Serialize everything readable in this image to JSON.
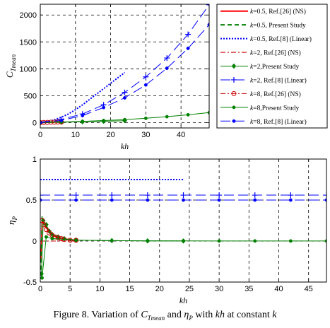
{
  "chart_data": [
    {
      "type": "line",
      "title": "",
      "xlabel": "kh",
      "ylabel": "C_Tmean",
      "xlim": [
        0,
        48
      ],
      "ylim": [
        -100,
        2200
      ],
      "xticks": [
        "0",
        "10",
        "20",
        "30",
        "40"
      ],
      "yticks": [
        "0",
        "500",
        "1000",
        "1500",
        "2000"
      ],
      "grid": true,
      "legend_placement": "outside-right",
      "series": [
        {
          "name": "k=0.5, Ref.[26] (NS)",
          "color": "#ff0000",
          "dash": "solid",
          "marker": "none",
          "width": 2,
          "x": [
            0.5,
            1,
            2,
            3,
            4,
            5
          ],
          "y": [
            2,
            4,
            6,
            8,
            10,
            12
          ]
        },
        {
          "name": "k=0.5, Present Study",
          "color": "#008000",
          "dash": "dashed",
          "marker": "none",
          "width": 2,
          "x": [
            0.5,
            1,
            2,
            3,
            4,
            5,
            6
          ],
          "y": [
            2,
            4,
            6,
            8,
            10,
            12,
            14
          ]
        },
        {
          "name": "k=0.5, Ref.[8] (Linear)",
          "color": "#0000ff",
          "dash": "dotted",
          "marker": "none",
          "width": 2,
          "x": [
            0,
            2,
            4,
            6,
            8,
            10,
            12,
            14,
            16,
            18,
            20,
            22,
            24
          ],
          "y": [
            5,
            20,
            50,
            100,
            160,
            240,
            330,
            430,
            530,
            630,
            730,
            830,
            930
          ]
        },
        {
          "name": "k=2, Ref.[26] (NS)",
          "color": "#cc0000",
          "dash": "dashdot",
          "marker": "none",
          "width": 1.2,
          "x": [
            0,
            1,
            2,
            3,
            4,
            5,
            6
          ],
          "y": [
            0,
            2,
            4,
            6,
            8,
            10,
            12
          ]
        },
        {
          "name": "k=2,Present Study",
          "color": "#008000",
          "dash": "solid",
          "marker": "diamond",
          "width": 1,
          "x": [
            0,
            6,
            12,
            18,
            24
          ],
          "y": [
            0,
            6,
            14,
            24,
            36
          ]
        },
        {
          "name": "k=2, Ref.[8] (Linear)",
          "color": "#0000ff",
          "dash": "longdash",
          "marker": "plus",
          "width": 1,
          "x": [
            0,
            6,
            12,
            18,
            24,
            30,
            36,
            42,
            48
          ],
          "y": [
            0,
            60,
            160,
            330,
            560,
            850,
            1200,
            1640,
            2190
          ]
        },
        {
          "name": "k=8, Ref.[26] (NS)",
          "color": "#cc0000",
          "dash": "dashdot",
          "marker": "circle",
          "width": 1,
          "x": [
            0,
            1,
            2,
            3,
            4,
            5,
            6
          ],
          "y": [
            0,
            2,
            4,
            6,
            8,
            10,
            12
          ]
        },
        {
          "name": "k=8,Present Study",
          "color": "#008000",
          "dash": "solid",
          "marker": "dot",
          "width": 1,
          "x": [
            0,
            6,
            12,
            18,
            24,
            30,
            36,
            42,
            48
          ],
          "y": [
            0,
            10,
            22,
            38,
            55,
            80,
            110,
            145,
            185
          ]
        },
        {
          "name": "k=8, Ref.[8] (Linear)",
          "color": "#0000ff",
          "dash": "longdash",
          "marker": "dot",
          "width": 1,
          "x": [
            0,
            6,
            12,
            18,
            24,
            30,
            36,
            42,
            48
          ],
          "y": [
            0,
            40,
            130,
            280,
            460,
            700,
            1010,
            1380,
            1820
          ]
        }
      ]
    },
    {
      "type": "line",
      "title": "",
      "xlabel": "kh",
      "ylabel": "η_P",
      "xlim": [
        0,
        48
      ],
      "ylim": [
        -0.5,
        1
      ],
      "xticks": [
        "0",
        "5",
        "10",
        "15",
        "20",
        "25",
        "30",
        "35",
        "40",
        "45"
      ],
      "yticks": [
        "-0.5",
        "0",
        "0.5",
        "1"
      ],
      "grid": true,
      "series": [
        {
          "name": "k=0.5, Ref.[26] (NS)",
          "color": "#ff0000",
          "dash": "solid",
          "marker": "none",
          "width": 1.5,
          "x": [
            0.1,
            0.3,
            0.6,
            1,
            1.5,
            2,
            3,
            4,
            5,
            6
          ],
          "y": [
            -0.25,
            0.27,
            0.21,
            0.16,
            0.11,
            0.07,
            0.04,
            0.02,
            0.01,
            0.01
          ]
        },
        {
          "name": "k=0.5, Present Study",
          "color": "#008000",
          "dash": "dashed",
          "marker": "none",
          "width": 1.5,
          "x": [
            0.1,
            0.3,
            0.6,
            1,
            1.5,
            2,
            3,
            4,
            5,
            6
          ],
          "y": [
            -0.35,
            0.3,
            0.23,
            0.18,
            0.12,
            0.08,
            0.05,
            0.03,
            0.02,
            0.01
          ]
        },
        {
          "name": "k=0.5, Ref.[8] (Linear)",
          "color": "#0000ff",
          "dash": "dotted",
          "marker": "none",
          "width": 2,
          "x": [
            0,
            24
          ],
          "y": [
            0.75,
            0.75
          ]
        },
        {
          "name": "k=2, Ref.[26] (NS)",
          "color": "#cc0000",
          "dash": "dashdot",
          "marker": "none",
          "width": 1,
          "x": [
            0,
            6
          ],
          "y": [
            0,
            0
          ]
        },
        {
          "name": "k=2,Present Study",
          "color": "#008000",
          "dash": "solid",
          "marker": "diamond",
          "width": 1,
          "x": [
            0.2,
            0.5,
            1,
            1.5,
            2,
            3,
            4,
            6,
            12,
            18,
            24
          ],
          "y": [
            -0.4,
            0.25,
            0.2,
            0.12,
            0.08,
            0.05,
            0.03,
            0.01,
            0.005,
            0.002,
            0.001
          ]
        },
        {
          "name": "k=2, Ref.[8] (Linear)",
          "color": "#0000ff",
          "dash": "longdash",
          "marker": "plus",
          "width": 1,
          "x": [
            0,
            6,
            12,
            18,
            24,
            30,
            36,
            42,
            48
          ],
          "y": [
            0.56,
            0.56,
            0.56,
            0.56,
            0.56,
            0.56,
            0.56,
            0.56,
            0.56
          ]
        },
        {
          "name": "k=8, Ref.[26] (NS)",
          "color": "#cc0000",
          "dash": "dashdot",
          "marker": "circle",
          "width": 1,
          "x": [
            0.3,
            0.6,
            1,
            1.5,
            2,
            2.5,
            3,
            3.5,
            4,
            5,
            6
          ],
          "y": [
            0.25,
            0.2,
            0.14,
            0.1,
            0.07,
            0.05,
            0.04,
            0.03,
            0.02,
            0.01,
            0.01
          ]
        },
        {
          "name": "k=8,Present Study",
          "color": "#008000",
          "dash": "solid",
          "marker": "dot",
          "width": 1,
          "x": [
            0.3,
            1,
            2,
            6,
            12,
            18,
            24,
            30,
            36,
            42,
            48
          ],
          "y": [
            -0.45,
            0.05,
            0.03,
            0.01,
            0.005,
            0.003,
            0.002,
            0.001,
            0.001,
            0.001,
            0.001
          ]
        },
        {
          "name": "k=8, Ref.[8] (Linear)",
          "color": "#0000ff",
          "dash": "longdash",
          "marker": "dot",
          "width": 1,
          "x": [
            0,
            6,
            12,
            18,
            24,
            30,
            36,
            42,
            48
          ],
          "y": [
            0.5,
            0.5,
            0.5,
            0.5,
            0.5,
            0.5,
            0.5,
            0.5,
            0.5
          ]
        }
      ]
    }
  ],
  "caption": {
    "prefix": "Figure 8. Variation of ",
    "c_main": "C",
    "c_sub": "Tmean",
    "and": " and ",
    "eta_main": "η",
    "eta_sub": "P",
    "middle": " with ",
    "kh": "kh",
    "at": " at constant ",
    "k": "k"
  }
}
